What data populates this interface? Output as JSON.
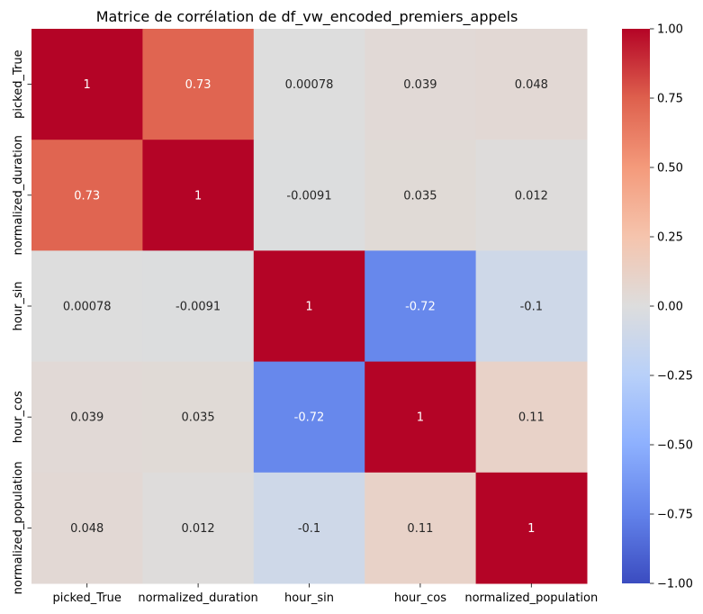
{
  "chart_data": {
    "type": "heatmap",
    "title": "Matrice de corrélation de df_vw_encoded_premiers_appels",
    "xlabel": "",
    "ylabel": "",
    "x_labels": [
      "picked_True",
      "normalized_duration",
      "hour_sin",
      "hour_cos",
      "normalized_population"
    ],
    "y_labels": [
      "picked_True",
      "normalized_duration",
      "hour_sin",
      "hour_cos",
      "normalized_population"
    ],
    "values": [
      [
        1,
        0.73,
        0.00078,
        0.039,
        0.048
      ],
      [
        0.73,
        1,
        -0.0091,
        0.035,
        0.012
      ],
      [
        0.00078,
        -0.0091,
        1,
        -0.72,
        -0.1
      ],
      [
        0.039,
        0.035,
        -0.72,
        1,
        0.11
      ],
      [
        0.048,
        0.012,
        -0.1,
        0.11,
        1
      ]
    ],
    "value_labels": [
      [
        "1",
        "0.73",
        "0.00078",
        "0.039",
        "0.048"
      ],
      [
        "0.73",
        "1",
        "-0.0091",
        "0.035",
        "0.012"
      ],
      [
        "0.00078",
        "-0.0091",
        "1",
        "-0.72",
        "-0.1"
      ],
      [
        "0.039",
        "0.035",
        "-0.72",
        "1",
        "0.11"
      ],
      [
        "0.048",
        "0.012",
        "-0.1",
        "0.11",
        "1"
      ]
    ],
    "colormap": "coolwarm",
    "vmin": -1,
    "vmax": 1,
    "colorbar_ticks": [
      "1.00",
      "0.75",
      "0.50",
      "0.25",
      "0.00",
      "−0.25",
      "−0.50",
      "−0.75",
      "−1.00"
    ],
    "colorbar_tick_values": [
      1,
      0.75,
      0.5,
      0.25,
      0,
      -0.25,
      -0.5,
      -0.75,
      -1
    ],
    "colors": {
      "low": "#3b4cc0",
      "mid": "#dddddd",
      "high": "#b40426"
    }
  }
}
